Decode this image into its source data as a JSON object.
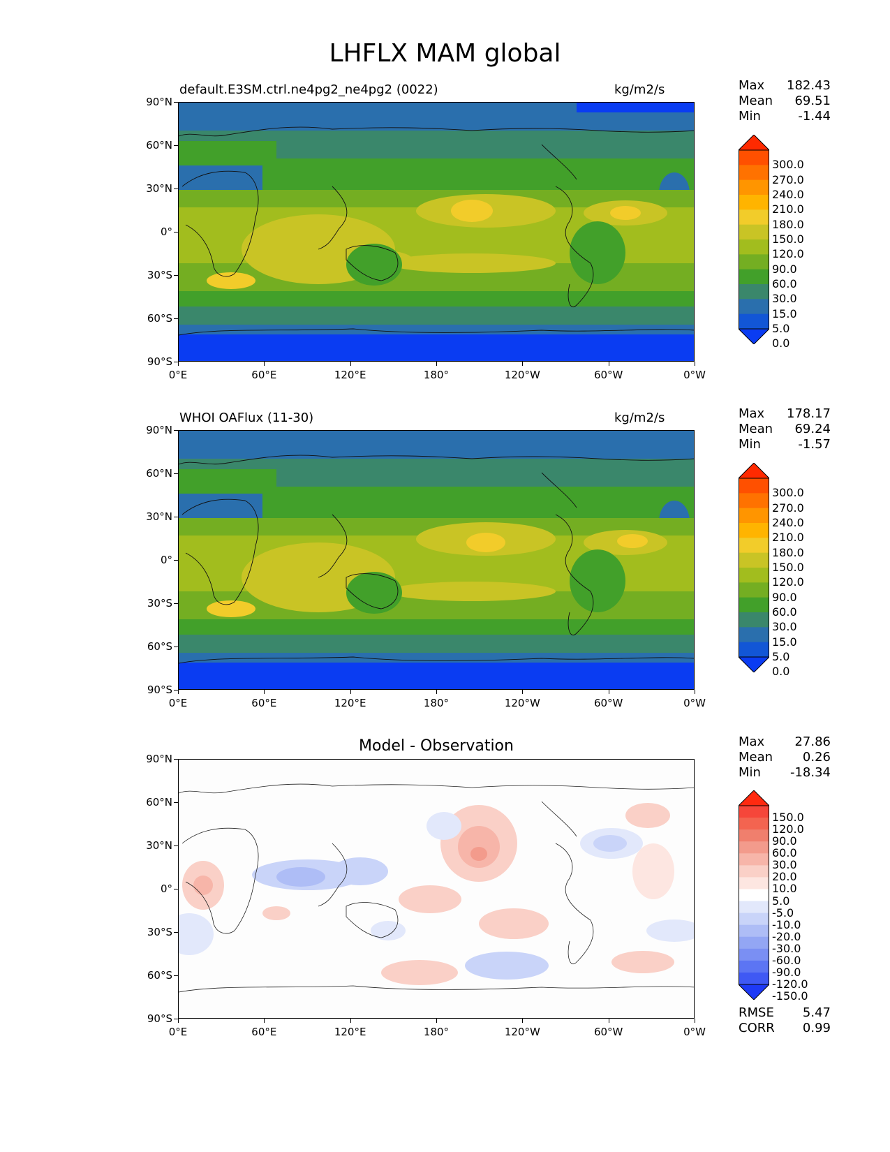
{
  "figure_title": "LHFLX MAM global",
  "axes": {
    "lat_labels": [
      "90°N",
      "60°N",
      "30°N",
      "0°",
      "30°S",
      "60°S",
      "90°S"
    ],
    "lon_labels": [
      "0°E",
      "60°E",
      "120°E",
      "180°",
      "120°W",
      "60°W",
      "0°W"
    ]
  },
  "panels": [
    {
      "title_left": "default.E3SM.ctrl.ne4pg2_ne4pg2 (0022)",
      "title_right": "kg/m2/s",
      "title_center": "",
      "stats": {
        "max_label": "Max",
        "max": "182.43",
        "mean_label": "Mean",
        "mean": "69.51",
        "min_label": "Min",
        "min": "-1.44"
      },
      "colorbar_labels": [
        "300.0",
        "270.0",
        "240.0",
        "210.0",
        "180.0",
        "150.0",
        "120.0",
        "90.0",
        "60.0",
        "30.0",
        "15.0",
        "5.0",
        "0.0"
      ],
      "colorbar_colors": [
        "#ff2a00",
        "#ff5000",
        "#ff7200",
        "#ff9500",
        "#ffb400",
        "#f2cc2a",
        "#c9c425",
        "#a2bd1e",
        "#74ae22",
        "#42a02a",
        "#3a876b",
        "#2a6fad",
        "#1256d6",
        "#0a3cf2"
      ]
    },
    {
      "title_left": "WHOI OAFlux (11-30)",
      "title_right": "kg/m2/s",
      "title_center": "",
      "stats": {
        "max_label": "Max",
        "max": "178.17",
        "mean_label": "Mean",
        "mean": "69.24",
        "min_label": "Min",
        "min": "-1.57"
      },
      "colorbar_labels": [
        "300.0",
        "270.0",
        "240.0",
        "210.0",
        "180.0",
        "150.0",
        "120.0",
        "90.0",
        "60.0",
        "30.0",
        "15.0",
        "5.0",
        "0.0"
      ],
      "colorbar_colors": [
        "#ff2a00",
        "#ff5000",
        "#ff7200",
        "#ff9500",
        "#ffb400",
        "#f2cc2a",
        "#c9c425",
        "#a2bd1e",
        "#74ae22",
        "#42a02a",
        "#3a876b",
        "#2a6fad",
        "#1256d6",
        "#0a3cf2"
      ]
    },
    {
      "title_left": "",
      "title_right": "",
      "title_center": "Model - Observation",
      "stats": {
        "max_label": "Max",
        "max": "27.86",
        "mean_label": "Mean",
        "mean": "0.26",
        "min_label": "Min",
        "min": "-18.34"
      },
      "colorbar_labels": [
        "150.0",
        "120.0",
        "90.0",
        "60.0",
        "30.0",
        "20.0",
        "10.0",
        "5.0",
        "-5.0",
        "-10.0",
        "-20.0",
        "-30.0",
        "-60.0",
        "-90.0",
        "-120.0",
        "-150.0"
      ],
      "colorbar_colors": [
        "#ff2a10",
        "#f6463a",
        "#f36450",
        "#f07f6d",
        "#f39b8c",
        "#f7b5a9",
        "#fad0c7",
        "#fde6e1",
        "#ffffff",
        "#e2e8fb",
        "#c9d4f9",
        "#aebdf6",
        "#93a6f4",
        "#7a8ff3",
        "#5c75f3",
        "#3f59f4",
        "#1e3af6"
      ],
      "rmse": {
        "rmse_label": "RMSE",
        "rmse": "5.47",
        "corr_label": "CORR",
        "corr": "0.99"
      }
    }
  ]
}
